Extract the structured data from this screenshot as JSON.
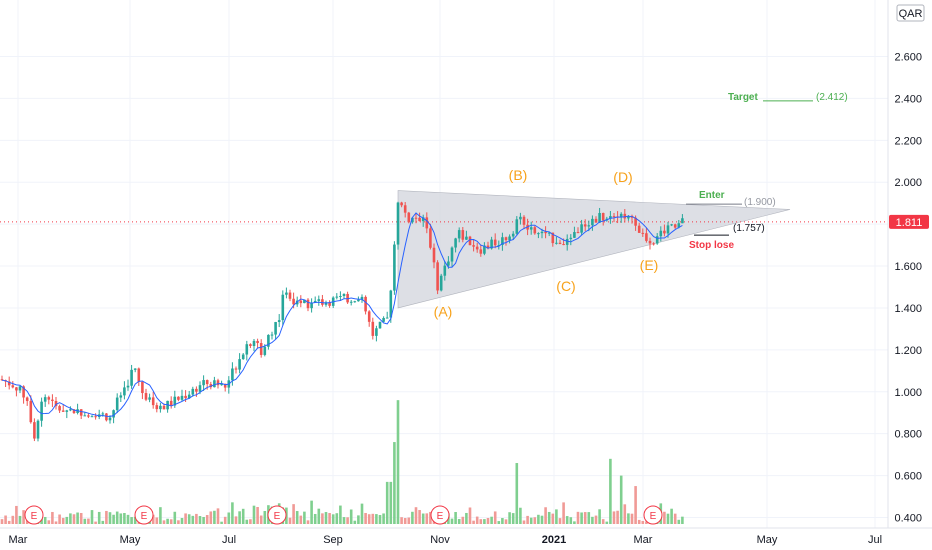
{
  "currency": "QAR",
  "last_price": "1.811",
  "colors": {
    "up": "#26a69a",
    "down": "#ef5350",
    "vol_up": "#7fcf8f",
    "vol_down": "#f09a96",
    "ma": "#2962ff",
    "wave": "#f7a21b",
    "target": "#4caf50",
    "stop": "#f23645",
    "triangle": "#d1d4dc",
    "grid": "#f0f3fa"
  },
  "chart_data": {
    "type": "candlestick",
    "x_ticks": [
      "Mar",
      "May",
      "Jul",
      "Sep",
      "Nov",
      "2021",
      "Mar",
      "May",
      "Jul"
    ],
    "y_ticks": [
      "2.600",
      "2.400",
      "2.200",
      "2.000",
      "1.800",
      "1.600",
      "1.400",
      "1.200",
      "1.000",
      "0.800",
      "0.600",
      "0.400"
    ],
    "ylim": [
      0.33,
      2.74
    ],
    "price_path": [
      [
        0,
        1.06
      ],
      [
        15,
        1.03
      ],
      [
        28,
        0.96
      ],
      [
        34,
        0.78
      ],
      [
        40,
        0.93
      ],
      [
        47,
        0.99
      ],
      [
        55,
        0.92
      ],
      [
        75,
        0.91
      ],
      [
        95,
        0.9
      ],
      [
        110,
        0.88
      ],
      [
        120,
        0.98
      ],
      [
        128,
        1.05
      ],
      [
        134,
        1.12
      ],
      [
        140,
        1.02
      ],
      [
        150,
        0.95
      ],
      [
        160,
        0.92
      ],
      [
        180,
        0.97
      ],
      [
        200,
        1.03
      ],
      [
        215,
        1.05
      ],
      [
        225,
        1.02
      ],
      [
        235,
        1.12
      ],
      [
        245,
        1.22
      ],
      [
        255,
        1.25
      ],
      [
        262,
        1.18
      ],
      [
        270,
        1.28
      ],
      [
        280,
        1.37
      ],
      [
        285,
        1.5
      ],
      [
        292,
        1.45
      ],
      [
        300,
        1.41
      ],
      [
        320,
        1.43
      ],
      [
        340,
        1.44
      ],
      [
        358,
        1.45
      ],
      [
        362,
        1.43
      ],
      [
        368,
        1.35
      ],
      [
        372,
        1.27
      ],
      [
        380,
        1.31
      ],
      [
        388,
        1.35
      ],
      [
        393,
        1.62
      ],
      [
        398,
        1.92
      ],
      [
        404,
        1.86
      ],
      [
        410,
        1.82
      ],
      [
        418,
        1.84
      ],
      [
        425,
        1.82
      ],
      [
        430,
        1.72
      ],
      [
        437,
        1.5
      ],
      [
        442,
        1.56
      ],
      [
        450,
        1.66
      ],
      [
        458,
        1.76
      ],
      [
        466,
        1.73
      ],
      [
        480,
        1.68
      ],
      [
        495,
        1.71
      ],
      [
        507,
        1.74
      ],
      [
        515,
        1.79
      ],
      [
        520,
        1.86
      ],
      [
        528,
        1.77
      ],
      [
        545,
        1.74
      ],
      [
        562,
        1.72
      ],
      [
        575,
        1.76
      ],
      [
        590,
        1.82
      ],
      [
        605,
        1.84
      ],
      [
        616,
        1.86
      ],
      [
        625,
        1.84
      ],
      [
        632,
        1.81
      ],
      [
        645,
        1.74
      ],
      [
        652,
        1.72
      ],
      [
        662,
        1.76
      ],
      [
        672,
        1.8
      ],
      [
        688,
        1.81
      ]
    ],
    "volume_spikes": [
      [
        389,
        0.57
      ],
      [
        394,
        0.76
      ],
      [
        398,
        0.96
      ],
      [
        517,
        0.66
      ],
      [
        612,
        0.68
      ],
      [
        622,
        0.6
      ],
      [
        635,
        0.55
      ]
    ],
    "triangle": {
      "upper_start": [
        398,
        1.96
      ],
      "lower_start": [
        398,
        1.4
      ],
      "apex": [
        790,
        1.87
      ]
    },
    "wave_labels": [
      {
        "text": "(A)",
        "x": 443,
        "y": 1.36
      },
      {
        "text": "(B)",
        "x": 518,
        "y": 2.01
      },
      {
        "text": "(C)",
        "x": 566,
        "y": 1.48
      },
      {
        "text": "(D)",
        "x": 623,
        "y": 2.0
      },
      {
        "text": "(E)",
        "x": 649,
        "y": 1.58
      }
    ],
    "levels": {
      "target": {
        "label": "Target",
        "value_text": "(2.412)",
        "value": 2.412
      },
      "enter": {
        "label": "Enter",
        "value_text": "(1.900)",
        "value": 1.9
      },
      "stop": {
        "label": "Stop lose",
        "value_text": "(1.757)",
        "value": 1.757
      }
    },
    "earnings_marker": "E",
    "earnings_x": [
      34,
      144,
      277,
      440,
      653
    ]
  }
}
